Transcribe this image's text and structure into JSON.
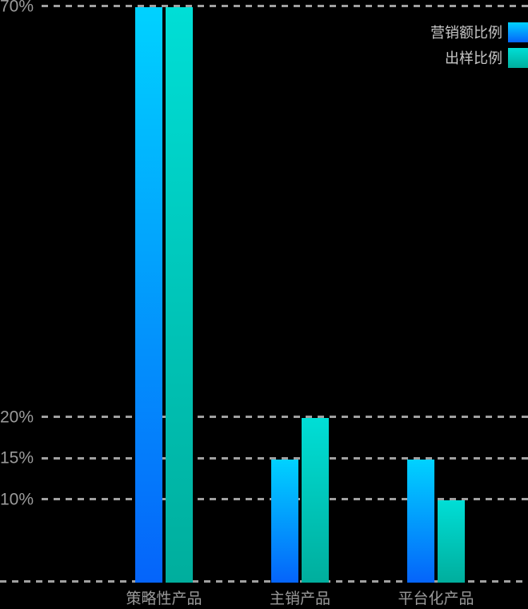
{
  "chart_data": {
    "type": "bar",
    "title": "",
    "categories": [
      "策略性产品",
      "主销产品",
      "平台化产品"
    ],
    "series": [
      {
        "name": "营销额比例",
        "values": [
          70,
          15,
          15
        ],
        "unit": "%",
        "color_top": "#00d2ff",
        "color_bottom": "#0564fa"
      },
      {
        "name": "出样比例",
        "values": [
          70,
          20,
          10
        ],
        "unit": "%",
        "color_top": "#00ded6",
        "color_bottom": "#00ae9d"
      }
    ],
    "y_ticks": [
      "70%",
      "20%",
      "15%",
      "10%"
    ],
    "y_tick_values": [
      70,
      20,
      15,
      10
    ],
    "ylim": [
      0,
      70
    ],
    "grid": "dashed-horizontal",
    "gridline_color": "#a0a0a0",
    "axis_label_color": "#9a9a9a",
    "legend_text_color": "#c6c6c6",
    "background": "#000000",
    "legend_position": "top-right"
  },
  "legend": {
    "items": [
      {
        "label": "营销额比例"
      },
      {
        "label": "出样比例"
      }
    ]
  }
}
